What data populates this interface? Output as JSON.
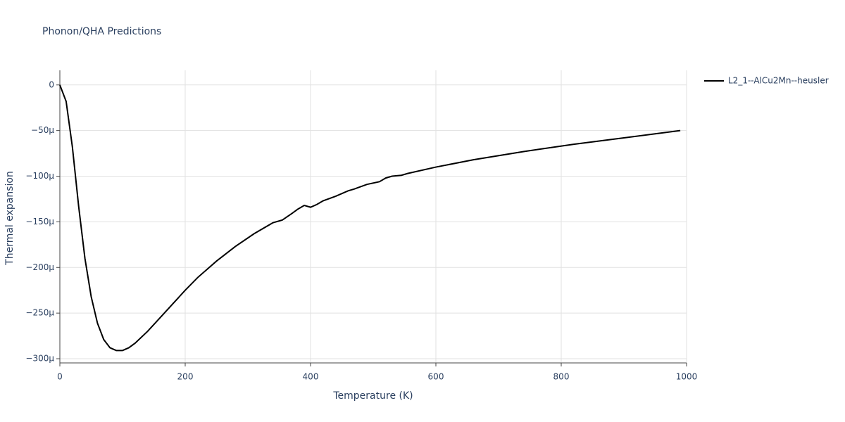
{
  "chart_data": {
    "type": "line",
    "title": "Phonon/QHA Predictions",
    "x_label": "Temperature (K)",
    "y_label": "Thermal expansion",
    "x": [
      0,
      10,
      20,
      30,
      40,
      50,
      60,
      70,
      80,
      90,
      100,
      110,
      120,
      140,
      160,
      180,
      200,
      220,
      250,
      280,
      310,
      340,
      355,
      370,
      380,
      390,
      400,
      410,
      420,
      440,
      460,
      470,
      490,
      510,
      520,
      530,
      545,
      555,
      600,
      660,
      740,
      820,
      900,
      990
    ],
    "series": [
      {
        "name": "L2_1--AlCu2Mn--heusler",
        "color": "#000000",
        "values": [
          0,
          -1.8e-05,
          -6.8e-05,
          -0.000133,
          -0.00019,
          -0.000232,
          -0.000261,
          -0.000279,
          -0.000288,
          -0.000291,
          -0.000291,
          -0.000288,
          -0.000283,
          -0.00027,
          -0.000255,
          -0.00024,
          -0.000225,
          -0.000211,
          -0.000193,
          -0.000177,
          -0.000163,
          -0.000151,
          -0.000148,
          -0.000141,
          -0.000136,
          -0.000132,
          -0.000134,
          -0.000131,
          -0.000127,
          -0.000122,
          -0.000116,
          -0.000114,
          -0.000109,
          -0.000106,
          -0.000102,
          -0.0001,
          -9.9e-05,
          -9.7e-05,
          -9e-05,
          -8.2e-05,
          -7.3e-05,
          -6.5e-05,
          -5.8e-05,
          -5e-05
        ]
      }
    ],
    "xlim": [
      0,
      1000
    ],
    "xticks": [
      0,
      200,
      400,
      600,
      800,
      1000
    ],
    "ylim": [
      -0.0003046,
      1.6e-05
    ],
    "yticks": [
      0,
      {
        "value": -5e-05,
        "label": "−50μ"
      },
      {
        "value": -0.0001,
        "label": "−100μ"
      },
      {
        "value": -0.00015,
        "label": "−150μ"
      },
      {
        "value": -0.0002,
        "label": "−200μ"
      },
      {
        "value": -0.00025,
        "label": "−250μ"
      },
      {
        "value": -0.0003,
        "label": "−300μ"
      }
    ],
    "grid": true
  }
}
